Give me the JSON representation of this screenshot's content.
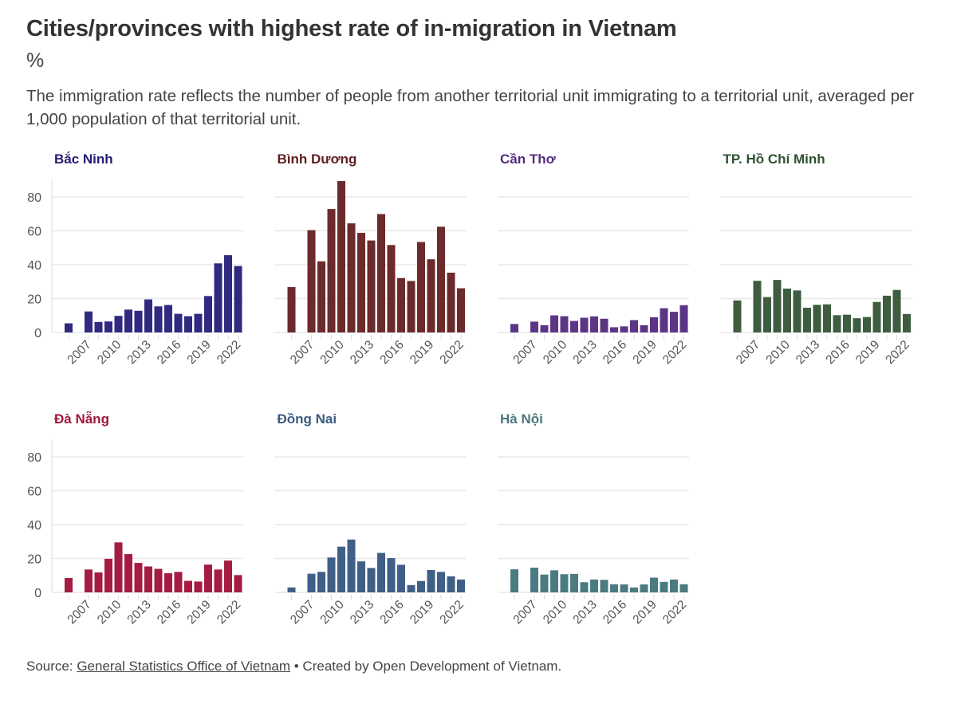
{
  "header": {
    "title": "Cities/provinces with highest rate of in-migration in Vietnam",
    "unit": "%",
    "subtitle": "The immigration rate reflects the number of people from another territorial unit immigrating to a territorial unit, averaged per 1,000 population of that territorial unit."
  },
  "footer": {
    "source_label": "Source: ",
    "source_link": "General Statistics Office of Vietnam",
    "credit": " • Created by Open Development of Vietnam."
  },
  "chart_data": {
    "type": "bar",
    "layout": "small-multiples",
    "x": [
      2005,
      2006,
      2007,
      2008,
      2009,
      2010,
      2011,
      2012,
      2013,
      2014,
      2015,
      2016,
      2017,
      2018,
      2019,
      2020,
      2021,
      2022
    ],
    "x_tick_labels": [
      "2007",
      "2010",
      "2013",
      "2016",
      "2019",
      "2022"
    ],
    "y_ticks": [
      0,
      20,
      40,
      60,
      80
    ],
    "ylim": [
      0,
      90
    ],
    "grid": true,
    "panels": [
      {
        "name": "Bắc Ninh",
        "color": "#2f2a80",
        "title_color": "#231c73",
        "values": [
          5.4,
          null,
          12.4,
          6.2,
          6.5,
          9.8,
          13.5,
          12.8,
          19.5,
          15.4,
          16.2,
          11,
          9.6,
          11,
          21.5,
          40.8,
          45.6,
          39.2
        ]
      },
      {
        "name": "Bình Dương",
        "color": "#6b2a2b",
        "title_color": "#5e1f20",
        "values": [
          26.8,
          null,
          60.4,
          42,
          72.9,
          89.4,
          64.4,
          58.8,
          54.3,
          69.9,
          51.6,
          32.1,
          30.4,
          53.4,
          43.2,
          62.4,
          35.3,
          26.1
        ]
      },
      {
        "name": "Cần Thơ",
        "color": "#5c3585",
        "title_color": "#552c7e",
        "values": [
          5,
          null,
          6.4,
          4.3,
          10.1,
          9.6,
          6.8,
          8.7,
          9.5,
          8.1,
          3.1,
          3.6,
          7.3,
          4.3,
          9,
          14.3,
          12.2,
          16.1
        ]
      },
      {
        "name": "TP. Hồ Chí Minh",
        "color": "#3e5d3f",
        "title_color": "#2f5232",
        "values": [
          18.9,
          null,
          30.5,
          20.9,
          31,
          25.9,
          24.8,
          14.6,
          16.3,
          16.6,
          10.2,
          10.5,
          8.4,
          9.1,
          18,
          21.7,
          25.1,
          10.9
        ]
      },
      {
        "name": "Đà Nẵng",
        "color": "#a51c42",
        "title_color": "#a0183e",
        "values": [
          8.5,
          null,
          13.5,
          11.8,
          19.8,
          29.5,
          22.6,
          17.4,
          15.3,
          13.9,
          11.3,
          12.1,
          6.8,
          6.4,
          16.4,
          13.5,
          18.8,
          10.2
        ]
      },
      {
        "name": "Đồng Nai",
        "color": "#3f5f86",
        "title_color": "#3a5a80",
        "values": [
          2.9,
          null,
          11,
          12.1,
          20.6,
          27,
          31.2,
          18.3,
          14.4,
          23.3,
          20.2,
          16.3,
          4.3,
          6.7,
          13.2,
          12.1,
          9.5,
          7.6
        ]
      },
      {
        "name": "Hà Nội",
        "color": "#4b7b80",
        "title_color": "#4a787e",
        "values": [
          13.6,
          null,
          14.6,
          10.5,
          13,
          10.7,
          10.9,
          6,
          7.6,
          7.4,
          4.8,
          4.7,
          2.9,
          4.7,
          8.7,
          6.2,
          7.6,
          4.8
        ]
      }
    ]
  }
}
